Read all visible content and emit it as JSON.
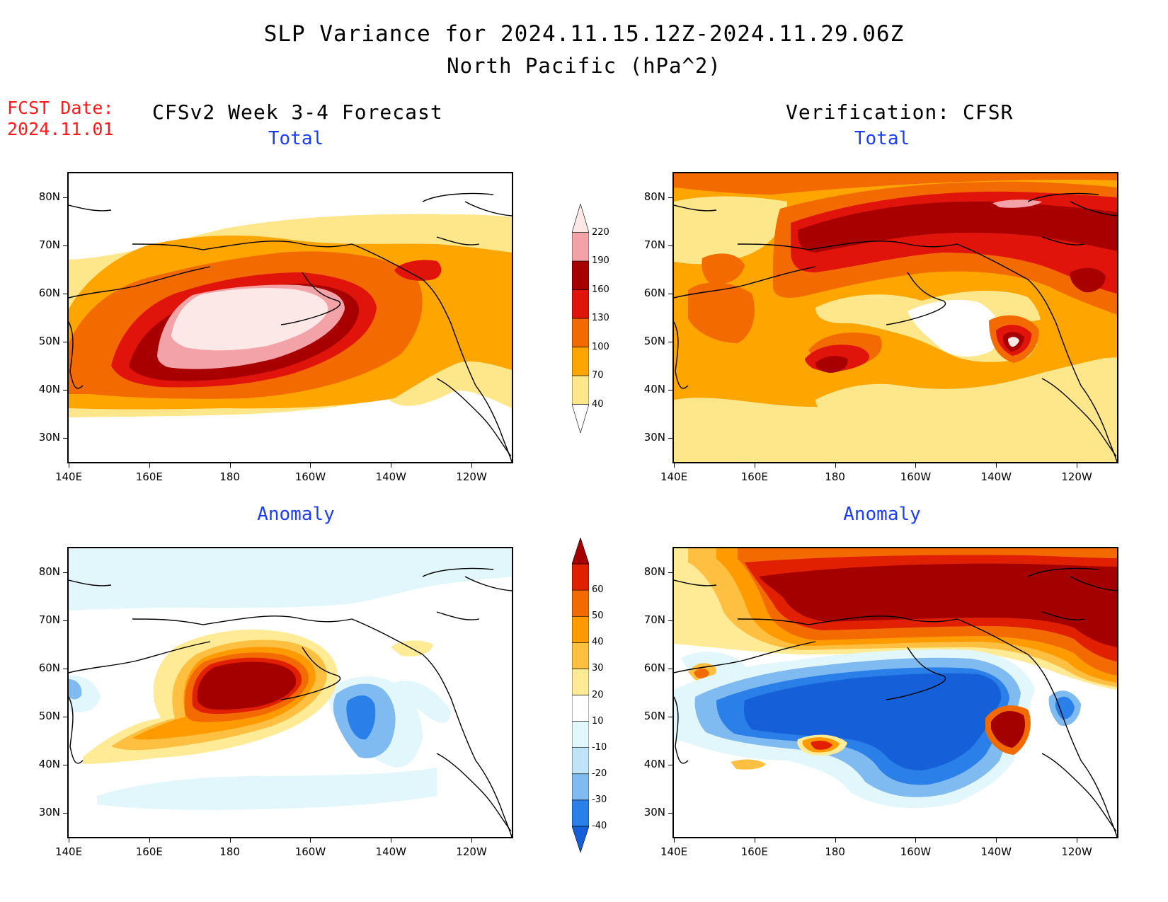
{
  "title": {
    "line1": "SLP Variance for 2024.11.15.12Z-2024.11.29.06Z",
    "line2": "North Pacific (hPa^2)"
  },
  "forecast_date": {
    "label": "FCST Date:",
    "value": "2024.11.01"
  },
  "columns": {
    "left": "CFSv2 Week 3-4 Forecast",
    "right": "Verification: CFSR"
  },
  "panels": [
    {
      "title": "Total",
      "field": "total",
      "source": "forecast"
    },
    {
      "title": "Total",
      "field": "total",
      "source": "verification"
    },
    {
      "title": "Anomaly",
      "field": "anomaly",
      "source": "forecast"
    },
    {
      "title": "Anomaly",
      "field": "anomaly",
      "source": "verification"
    }
  ],
  "axes": {
    "lat_labels": [
      "80N",
      "70N",
      "60N",
      "50N",
      "40N",
      "30N"
    ],
    "lat_values": [
      80,
      70,
      60,
      50,
      40,
      30
    ],
    "lon_labels": [
      "140E",
      "160E",
      "180",
      "160W",
      "140W",
      "120W"
    ],
    "lon_values": [
      140,
      160,
      180,
      200,
      220,
      240
    ],
    "lat_range": [
      25,
      85
    ],
    "lon_range": [
      140,
      250
    ]
  },
  "colorbars": {
    "total": {
      "labels": [
        "40",
        "70",
        "100",
        "130",
        "160",
        "190",
        "220"
      ],
      "colors": [
        "#ffffff",
        "#fee68a",
        "#ffa500",
        "#f36b00",
        "#e0140a",
        "#a80000",
        "#f3a3a8",
        "#fde8e8"
      ]
    },
    "anomaly": {
      "labels": [
        "-40",
        "-30",
        "-20",
        "-10",
        "10",
        "20",
        "30",
        "40",
        "50",
        "60"
      ],
      "colors": [
        "#1560d8",
        "#2a7fe8",
        "#7fbaf0",
        "#bfe3f7",
        "#e1f7fb",
        "#ffffff",
        "#ffeb95",
        "#ffbf40",
        "#ff9a00",
        "#f36b00",
        "#e02000",
        "#a50000"
      ]
    }
  }
}
